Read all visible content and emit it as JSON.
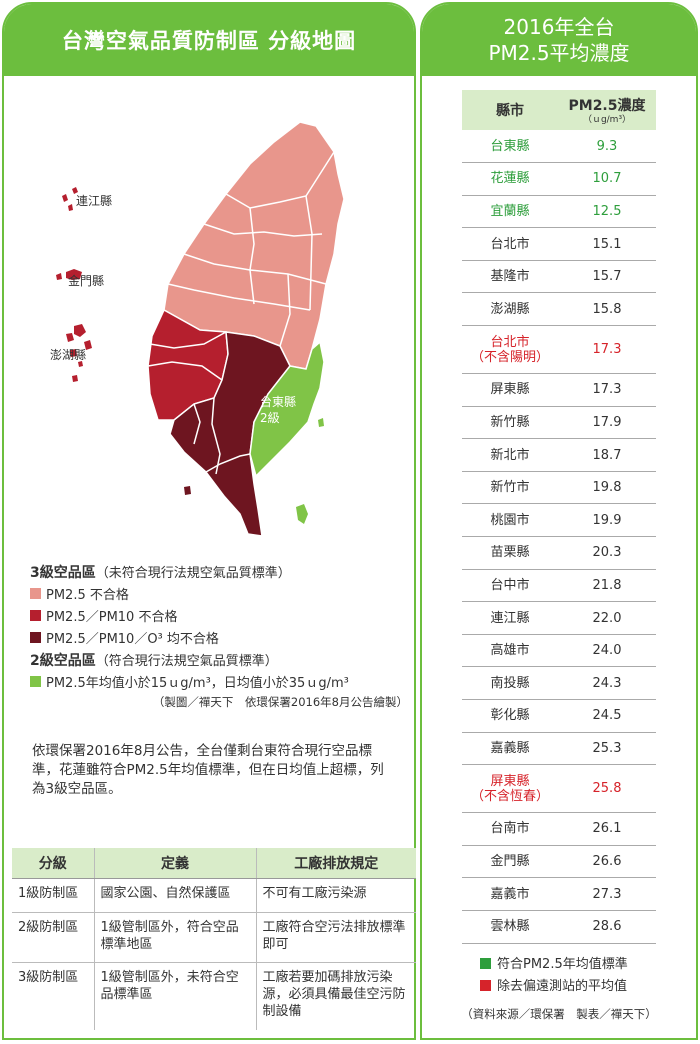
{
  "left": {
    "title": "台灣空氣品質防制區 分級地圖",
    "map_labels": {
      "lienchiang": "連江縣",
      "kinmen": "金門縣",
      "penghu": "澎湖縣",
      "taitung_1": "台東縣",
      "taitung_2": "2級"
    },
    "legend": {
      "level3_title": "3級空品區",
      "level3_note": "（未符合現行法規空氣品質標準）",
      "items3": [
        "PM2.5 不合格",
        "PM2.5／PM10 不合格",
        "PM2.5／PM10／O³ 均不合格"
      ],
      "level2_title": "2級空品區",
      "level2_note": "（符合現行法規空氣品質標準）",
      "item2": "PM2.5年均值小於15ｕg/m³，日均值小於35ｕg/m³",
      "credit": "（製圖／禪天下　依環保署2016年8月公告繪製）",
      "colors": {
        "pm25": "#e8968c",
        "pm25_pm10": "#b51f2e",
        "all": "#6e1520",
        "level2": "#80c447"
      }
    },
    "paragraph": "依環保署2016年8月公告，全台僅剩台東符合現行空品標準，花蓮雖符合PM2.5年均值標準，但在日均值上超標，列為3級空品區。",
    "table": {
      "headers": [
        "分級",
        "定義",
        "工廠排放規定"
      ],
      "rows": [
        [
          "1級防制區",
          "國家公園、自然保護區",
          "不可有工廠污染源"
        ],
        [
          "2級防制區",
          "1級管制區外，符合空品標準地區",
          "工廠符合空污法排放標準即可"
        ],
        [
          "3級防制區",
          "1級管制區外，未符合空品標準區",
          "工廠若要加碼排放污染源，必須具備最佳空污防制設備"
        ]
      ]
    }
  },
  "right": {
    "title_line1": "2016年全台",
    "title_line2": "PM2.5平均濃度",
    "header_county": "縣市",
    "header_value": "PM2.5濃度",
    "header_unit": "（ｕg/m³）",
    "rows": [
      {
        "county": "台東縣",
        "value": "9.3",
        "color": "green"
      },
      {
        "county": "花蓮縣",
        "value": "10.7",
        "color": "green"
      },
      {
        "county": "宜蘭縣",
        "value": "12.5",
        "color": "green"
      },
      {
        "county": "台北市",
        "value": "15.1",
        "color": "black"
      },
      {
        "county": "基隆市",
        "value": "15.7",
        "color": "black"
      },
      {
        "county": "澎湖縣",
        "value": "15.8",
        "color": "black"
      },
      {
        "county": "台北市",
        "county2": "（不含陽明）",
        "value": "17.3",
        "color": "red"
      },
      {
        "county": "屏東縣",
        "value": "17.3",
        "color": "black"
      },
      {
        "county": "新竹縣",
        "value": "17.9",
        "color": "black"
      },
      {
        "county": "新北市",
        "value": "18.7",
        "color": "black"
      },
      {
        "county": "新竹市",
        "value": "19.8",
        "color": "black"
      },
      {
        "county": "桃園市",
        "value": "19.9",
        "color": "black"
      },
      {
        "county": "苗栗縣",
        "value": "20.3",
        "color": "black"
      },
      {
        "county": "台中市",
        "value": "21.8",
        "color": "black"
      },
      {
        "county": "連江縣",
        "value": "22.0",
        "color": "black"
      },
      {
        "county": "高雄市",
        "value": "24.0",
        "color": "black"
      },
      {
        "county": "南投縣",
        "value": "24.3",
        "color": "black"
      },
      {
        "county": "彰化縣",
        "value": "24.5",
        "color": "black"
      },
      {
        "county": "嘉義縣",
        "value": "25.3",
        "color": "black"
      },
      {
        "county": "屏東縣",
        "county2": "（不含恆春）",
        "value": "25.8",
        "color": "red"
      },
      {
        "county": "台南市",
        "value": "26.1",
        "color": "black"
      },
      {
        "county": "金門縣",
        "value": "26.6",
        "color": "black"
      },
      {
        "county": "嘉義市",
        "value": "27.3",
        "color": "black"
      },
      {
        "county": "雲林縣",
        "value": "28.6",
        "color": "black"
      }
    ],
    "legend_green": "符合PM2.5年均值標準",
    "legend_red": "除去偏遠測站的平均值",
    "credit": "（資料來源／環保署　製表／禪天下）",
    "colors": {
      "green": "#2e9e3c",
      "red": "#d6232a"
    }
  }
}
